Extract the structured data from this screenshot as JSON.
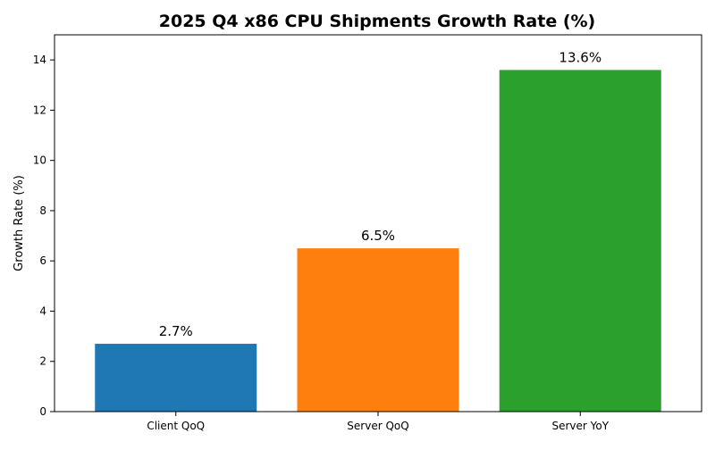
{
  "chart_data": {
    "type": "bar",
    "title": "2025 Q4 x86 CPU Shipments Growth Rate (%)",
    "xlabel": "",
    "ylabel": "Growth Rate (%)",
    "categories": [
      "Client QoQ",
      "Server QoQ",
      "Server YoY"
    ],
    "values": [
      2.7,
      6.5,
      13.6
    ],
    "data_labels": [
      "2.7%",
      "6.5%",
      "13.6%"
    ],
    "colors": [
      "#1f77b4",
      "#ff7f0e",
      "#2ca02c"
    ],
    "ylim": [
      0,
      15
    ],
    "yticks": [
      0,
      2,
      4,
      6,
      8,
      10,
      12,
      14
    ],
    "grid": false,
    "legend": "none"
  }
}
